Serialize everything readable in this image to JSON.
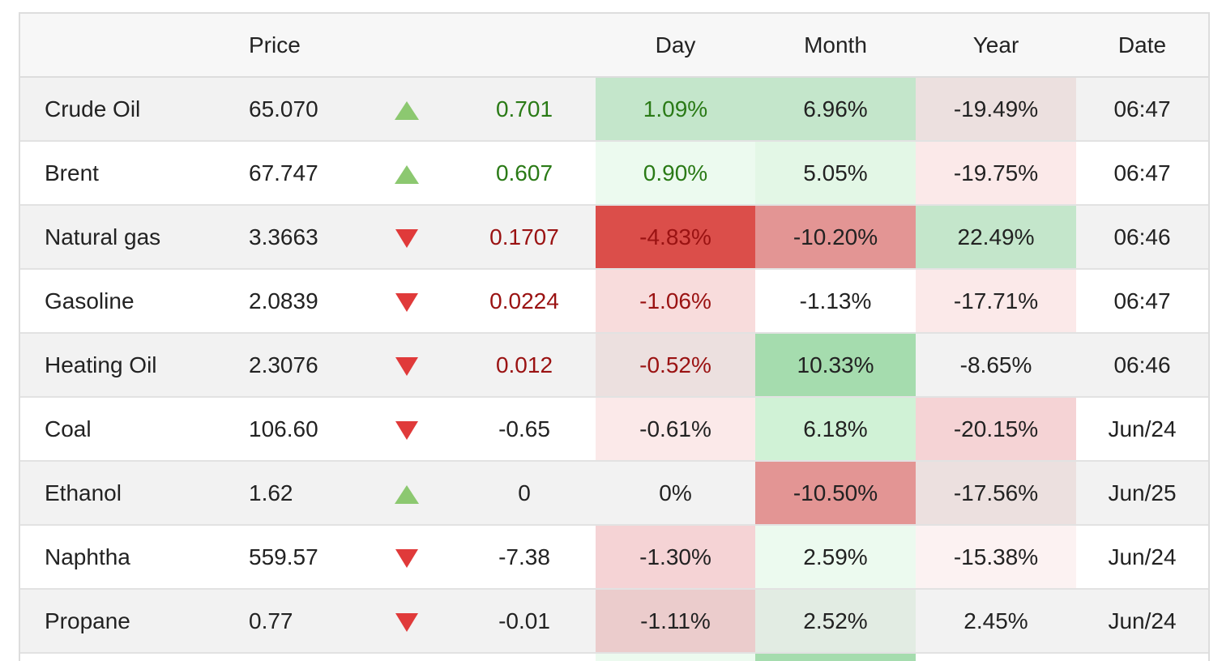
{
  "header": {
    "name": "",
    "price": "Price",
    "arrow": "",
    "change": "",
    "day": "Day",
    "month": "Month",
    "year": "Year",
    "date": "Date"
  },
  "rows": [
    {
      "name": "Crude Oil",
      "price": "65.070",
      "direction": "up",
      "change": "0.701",
      "change_tone": "pos",
      "day": "1.09%",
      "day_color": "g1",
      "month": "6.96%",
      "month_color": "g1",
      "year": "-19.49%",
      "year_color": "r4",
      "date": "06:47"
    },
    {
      "name": "Brent",
      "price": "67.747",
      "direction": "up",
      "change": "0.607",
      "change_tone": "pos",
      "day": "0.90%",
      "day_color": "g5",
      "month": "5.05%",
      "month_color": "g2",
      "year": "-19.75%",
      "year_color": "r5",
      "date": "06:47"
    },
    {
      "name": "Natural gas",
      "price": "3.3663",
      "direction": "down",
      "change": "0.1707",
      "change_tone": "neg",
      "day": "-4.83%",
      "day_color": "r1",
      "month": "-10.20%",
      "month_color": "r2",
      "year": "22.49%",
      "year_color": "g1",
      "date": "06:46"
    },
    {
      "name": "Gasoline",
      "price": "2.0839",
      "direction": "down",
      "change": "0.0224",
      "change_tone": "neg",
      "day": "-1.06%",
      "day_color": "r3",
      "month": "-1.13%",
      "month_color": "n0",
      "year": "-17.71%",
      "year_color": "r5",
      "date": "06:47"
    },
    {
      "name": "Heating Oil",
      "price": "2.3076",
      "direction": "down",
      "change": "0.012",
      "change_tone": "neg",
      "day": "-0.52%",
      "day_color": "r4",
      "month": "10.33%",
      "month_color": "g3",
      "year": "-8.65%",
      "year_color": "n0",
      "date": "06:46"
    },
    {
      "name": "Coal",
      "price": "106.60",
      "direction": "down",
      "change": "-0.65",
      "change_tone": "neu",
      "day": "-0.61%",
      "day_color": "r5",
      "month": "6.18%",
      "month_color": "g4",
      "year": "-20.15%",
      "year_color": "r6",
      "date": "Jun/24"
    },
    {
      "name": "Ethanol",
      "price": "1.62",
      "direction": "up",
      "change": "0",
      "change_tone": "neu",
      "day": "0%",
      "day_color": "n0",
      "month": "-10.50%",
      "month_color": "r2",
      "year": "-17.56%",
      "year_color": "r4",
      "date": "Jun/25"
    },
    {
      "name": "Naphtha",
      "price": "559.57",
      "direction": "down",
      "change": "-7.38",
      "change_tone": "neu",
      "day": "-1.30%",
      "day_color": "r6",
      "month": "2.59%",
      "month_color": "g5",
      "year": "-15.38%",
      "year_color": "r8",
      "date": "Jun/24"
    },
    {
      "name": "Propane",
      "price": "0.77",
      "direction": "down",
      "change": "-0.01",
      "change_tone": "neu",
      "day": "-1.11%",
      "day_color": "r7",
      "month": "2.52%",
      "month_color": "g6",
      "year": "2.45%",
      "year_color": "n0",
      "date": "Jun/24"
    }
  ],
  "partial_row": {
    "day_color": "g5",
    "month_color": "g3"
  },
  "colors": {
    "up_arrow": "#8cc870",
    "down_arrow": "#e03a3a",
    "positive_text": "#2a7a16",
    "negative_text": "#9a1212"
  },
  "icons": {
    "up": "triangle-up-icon",
    "down": "triangle-down-icon"
  }
}
